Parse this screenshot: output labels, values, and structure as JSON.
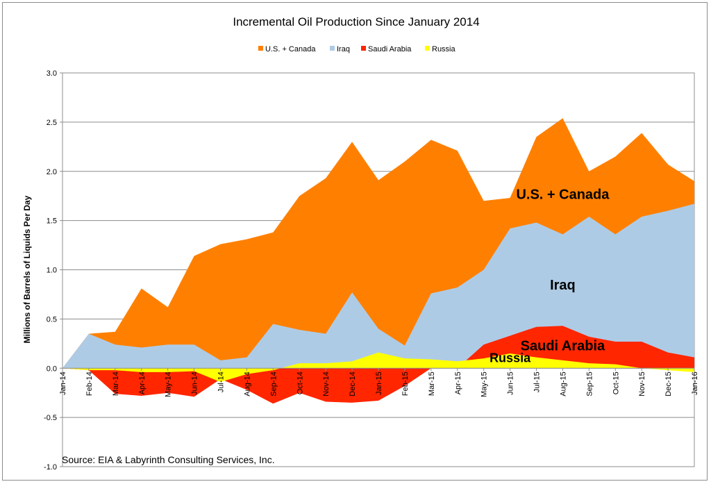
{
  "chart_data": {
    "type": "area",
    "title": "Incremental Oil Production Since January 2014",
    "ylabel": "Millions of Barrels of Liquids Per Day",
    "xlabel": "",
    "ylim": [
      -1.0,
      3.0
    ],
    "yticks": [
      -1.0,
      -0.5,
      0.0,
      0.5,
      1.0,
      1.5,
      2.0,
      2.5,
      3.0
    ],
    "ytick_labels": [
      "-1.0",
      "-0.5",
      "0.0",
      "0.5",
      "1.0",
      "1.5",
      "2.0",
      "2.5",
      "3.0"
    ],
    "grid": "horizontal",
    "legend_position": "top",
    "categories": [
      "Jan-14",
      "Feb-14",
      "Mar-14",
      "Apr-14",
      "May-14",
      "Jun-14",
      "Jul-14",
      "Aug-14",
      "Sep-14",
      "Oct-14",
      "Nov-14",
      "Dec-14",
      "Jan-15",
      "Feb-15",
      "Mar-15",
      "Apr-15",
      "May-15",
      "Jun-15",
      "Jul-15",
      "Aug-15",
      "Sep-15",
      "Oct-15",
      "Nov-15",
      "Dec-15",
      "Jan-16"
    ],
    "series": [
      {
        "name": "U.S. + Canada",
        "color": "#ff8000",
        "values": [
          0,
          0.35,
          0.37,
          0.81,
          0.62,
          1.14,
          1.26,
          1.31,
          1.38,
          1.75,
          1.93,
          2.3,
          1.91,
          2.1,
          2.32,
          2.21,
          1.7,
          1.73,
          2.35,
          2.54,
          2.0,
          2.15,
          2.39,
          2.07,
          1.9
        ]
      },
      {
        "name": "Iraq",
        "color": "#aecbe6",
        "values": [
          0,
          0.35,
          0.24,
          0.21,
          0.24,
          0.24,
          0.08,
          0.11,
          0.45,
          0.39,
          0.35,
          0.77,
          0.4,
          0.23,
          0.76,
          0.82,
          1.0,
          1.42,
          1.48,
          1.36,
          1.54,
          1.36,
          1.54,
          1.6,
          1.67
        ]
      },
      {
        "name": "Saudi Arabia",
        "color": "#ff2600",
        "values": [
          0,
          -0.02,
          -0.26,
          -0.28,
          -0.25,
          -0.29,
          -0.11,
          -0.22,
          -0.36,
          -0.25,
          -0.34,
          -0.35,
          -0.33,
          -0.18,
          0.0,
          0.0,
          0.24,
          0.33,
          0.42,
          0.43,
          0.32,
          0.27,
          0.27,
          0.16,
          0.11
        ]
      },
      {
        "name": "Russia",
        "color": "#ffff00",
        "values": [
          0,
          -0.02,
          -0.02,
          -0.04,
          -0.04,
          -0.03,
          -0.14,
          -0.06,
          -0.02,
          0.05,
          0.05,
          0.07,
          0.16,
          0.1,
          0.09,
          0.07,
          0.1,
          0.15,
          0.11,
          0.08,
          0.05,
          0.04,
          0.0,
          -0.02,
          -0.04
        ]
      }
    ],
    "annotations": [
      {
        "text": "U.S. + Canada",
        "x": "Aug-15",
        "y": 1.72
      },
      {
        "text": "Iraq",
        "x": "Aug-15",
        "y": 0.8
      },
      {
        "text": "Saudi Arabia",
        "x": "Aug-15",
        "y": 0.18
      },
      {
        "text": "Russia",
        "x": "Jun-15",
        "y": 0.06
      }
    ],
    "source": "Source: EIA & Labyrinth Consulting Services, Inc."
  }
}
